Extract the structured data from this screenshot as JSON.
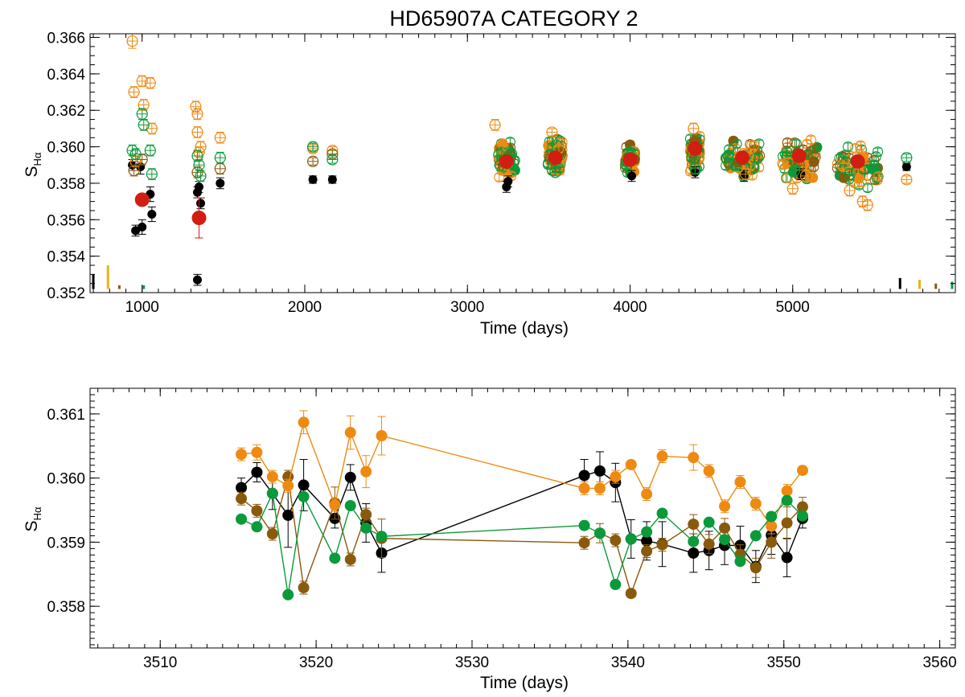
{
  "figure_title": "HD65907A CATEGORY 2",
  "colors": {
    "black": "#000000",
    "orange": "#ee8a12",
    "brown": "#8a5a0c",
    "green": "#0a9a3a",
    "red": "#d21e12",
    "yellow": "#e8b410"
  },
  "chart_data": [
    {
      "type": "scatter",
      "title": "HD65907A CATEGORY 2",
      "xlabel": "Time (days)",
      "ylabel": "S",
      "ylabel_sub": "Hα",
      "xlim": [
        680,
        6000
      ],
      "ylim": [
        0.352,
        0.3662
      ],
      "xticks": [
        1000,
        2000,
        3000,
        4000,
        5000
      ],
      "xtick_labels": [
        "1000",
        "2000",
        "3000",
        "4000",
        "5000"
      ],
      "yticks": [
        0.352,
        0.354,
        0.356,
        0.358,
        0.36,
        0.362,
        0.364,
        0.366
      ],
      "ytick_labels": [
        "0.352",
        "0.354",
        "0.356",
        "0.358",
        "0.360",
        "0.362",
        "0.364",
        "0.366"
      ],
      "series": [
        {
          "name": "black (filled)",
          "color": "black",
          "marker": "filled",
          "x": [
            940,
            960,
            990,
            1000,
            1050,
            1060,
            1340,
            1350,
            1360,
            1480,
            2050,
            2170,
            3240,
            3250,
            4010,
            4400,
            4700,
            5050,
            5700,
            1340
          ],
          "y": [
            0.359,
            0.3554,
            0.3589,
            0.3556,
            0.3574,
            0.3563,
            0.3575,
            0.3578,
            0.3569,
            0.358,
            0.3582,
            0.3582,
            0.3578,
            0.3581,
            0.3584,
            0.3586,
            0.3584,
            0.3585,
            0.3589,
            0.3527
          ],
          "err": [
            0.0003,
            0.0003,
            0.0004,
            0.0004,
            0.0004,
            0.0004,
            0.0003,
            0.0003,
            0.0003,
            0.0003,
            0.0002,
            0.0002,
            0.0003,
            0.0003,
            0.0003,
            0.0003,
            0.0003,
            0.0003,
            0.0002,
            0.0003
          ]
        },
        {
          "name": "orange (open)",
          "color": "orange",
          "marker": "open",
          "x": [
            940,
            950,
            1000,
            1010,
            1050,
            1060,
            1330,
            1340,
            1360,
            1480,
            1340,
            2050,
            2170,
            3170,
            3520,
            4390,
            4710,
            5000,
            5080,
            5350,
            5430,
            5460,
            5700,
            960,
            1350
          ],
          "y": [
            0.3658,
            0.363,
            0.3636,
            0.3623,
            0.3635,
            0.361,
            0.3622,
            0.3618,
            0.36,
            0.3605,
            0.3608,
            0.3599,
            0.3598,
            0.3612,
            0.3608,
            0.361,
            0.3585,
            0.3577,
            0.3584,
            0.3576,
            0.357,
            0.3568,
            0.3582,
            0.3592,
            0.3597
          ],
          "err": [
            0.0004,
            0.0003,
            0.0003,
            0.0003,
            0.0003,
            0.0003,
            0.0003,
            0.0003,
            0.0003,
            0.0003,
            0.0003,
            0.0002,
            0.0002,
            0.0003,
            0.0002,
            0.0003,
            0.0003,
            0.0003,
            0.0003,
            0.0003,
            0.0003,
            0.0003,
            0.0002,
            0.0003,
            0.0003
          ]
        },
        {
          "name": "brown (open)",
          "color": "brown",
          "marker": "open",
          "x": [
            950,
            1000,
            1340,
            1480,
            2050,
            2170,
            3230,
            4400,
            5040
          ],
          "y": [
            0.3587,
            0.3593,
            0.3586,
            0.3588,
            0.3592,
            0.3596,
            0.3592,
            0.3594,
            0.359
          ],
          "err": [
            0.0003,
            0.0003,
            0.0003,
            0.0003,
            0.0002,
            0.0002,
            0.0003,
            0.0003,
            0.0003
          ]
        },
        {
          "name": "green (open)",
          "color": "green",
          "marker": "open",
          "x": [
            940,
            960,
            1000,
            1010,
            1050,
            1060,
            1340,
            1350,
            1360,
            1480,
            2050,
            2170,
            3200,
            3540,
            4000,
            4400,
            4650,
            5010,
            5350,
            5700
          ],
          "y": [
            0.3598,
            0.3596,
            0.3618,
            0.3612,
            0.3598,
            0.3585,
            0.3595,
            0.359,
            0.3584,
            0.3594,
            0.36,
            0.3593,
            0.359,
            0.3586,
            0.3595,
            0.3588,
            0.359,
            0.3587,
            0.3585,
            0.3594
          ],
          "err": [
            0.0003,
            0.0003,
            0.0003,
            0.0003,
            0.0003,
            0.0003,
            0.0003,
            0.0003,
            0.0003,
            0.0003,
            0.0002,
            0.0002,
            0.0003,
            0.0002,
            0.0002,
            0.0003,
            0.0003,
            0.0003,
            0.0003,
            0.0002
          ]
        },
        {
          "name": "red (seasonal mean)",
          "color": "red",
          "marker": "big",
          "x": [
            1000,
            1350,
            3240,
            3540,
            4000,
            4400,
            4690,
            5040,
            5400
          ],
          "y": [
            0.3571,
            0.3561,
            0.3592,
            0.3594,
            0.3593,
            0.3599,
            0.3594,
            0.3595,
            0.3592
          ],
          "err": [
            0.0003,
            0.0011,
            0.0002,
            0.0002,
            0.0002,
            0.0002,
            0.0002,
            0.0002,
            0.0002
          ]
        }
      ],
      "dense_clusters": [
        {
          "x_center": 3240,
          "x_spread": 55,
          "y_min": 0.358,
          "y_max": 0.3606
        },
        {
          "x_center": 3540,
          "x_spread": 45,
          "y_min": 0.3583,
          "y_max": 0.3608
        },
        {
          "x_center": 4000,
          "x_spread": 30,
          "y_min": 0.3584,
          "y_max": 0.3603
        },
        {
          "x_center": 4400,
          "x_spread": 30,
          "y_min": 0.3582,
          "y_max": 0.3611
        },
        {
          "x_center": 4690,
          "x_spread": 110,
          "y_min": 0.3582,
          "y_max": 0.3606
        },
        {
          "x_center": 5040,
          "x_spread": 110,
          "y_min": 0.3579,
          "y_max": 0.3607
        },
        {
          "x_center": 5400,
          "x_spread": 130,
          "y_min": 0.3573,
          "y_max": 0.3604
        }
      ],
      "bars": [
        {
          "x": 700,
          "y0": 0.3522,
          "y1": 0.353,
          "color": "black"
        },
        {
          "x": 790,
          "y0": 0.3522,
          "y1": 0.3535,
          "color": "yellow"
        },
        {
          "x": 860,
          "y0": 0.3522,
          "y1": 0.3524,
          "color": "brown"
        },
        {
          "x": 1010,
          "y0": 0.3522,
          "y1": 0.3524,
          "color": "green"
        },
        {
          "x": 5660,
          "y0": 0.3522,
          "y1": 0.3528,
          "color": "black"
        },
        {
          "x": 5780,
          "y0": 0.3522,
          "y1": 0.3527,
          "color": "yellow"
        },
        {
          "x": 5880,
          "y0": 0.3522,
          "y1": 0.3525,
          "color": "brown"
        },
        {
          "x": 5980,
          "y0": 0.3522,
          "y1": 0.3526,
          "color": "green"
        }
      ]
    },
    {
      "type": "line",
      "title": "",
      "xlabel": "Time (days)",
      "ylabel": "S",
      "ylabel_sub": "Hα",
      "xlim": [
        3505.5,
        3561
      ],
      "ylim": [
        0.35735,
        0.3614
      ],
      "xticks": [
        3510,
        3520,
        3530,
        3540,
        3550,
        3560
      ],
      "xtick_labels": [
        "3510",
        "3520",
        "3530",
        "3540",
        "3550",
        "3560"
      ],
      "yticks": [
        0.358,
        0.359,
        0.36,
        0.361
      ],
      "ytick_labels": [
        "0.358",
        "0.359",
        "0.360",
        "0.361"
      ],
      "x": [
        3515.2,
        3516.2,
        3517.2,
        3518.2,
        3519.2,
        3521.2,
        3522.2,
        3523.2,
        3524.2,
        3537.2,
        3538.2,
        3539.2,
        3540.2,
        3541.2,
        3542.2,
        3544.2,
        3545.2,
        3546.2,
        3547.2,
        3548.2,
        3549.2,
        3550.2,
        3551.2
      ],
      "series": [
        {
          "name": "orange",
          "color": "orange",
          "values": [
            0.36037,
            0.3604,
            0.36002,
            0.35988,
            0.36087,
            0.35958,
            0.36071,
            0.3601,
            0.36066,
            0.35984,
            0.35984,
            0.36002,
            0.36021,
            0.35975,
            0.36034,
            0.36032,
            0.36011,
            0.35956,
            0.35994,
            0.3596,
            0.35925,
            0.3598,
            0.36012
          ],
          "err": [
            0.0001,
            0.00012,
            0.0001,
            0.0001,
            0.00018,
            0.0001,
            0.00026,
            0.00025,
            0.0003,
            0.0001,
            0.0001,
            0.0001,
            6e-05,
            0.0001,
            0.0001,
            0.0002,
            0.0001,
            0.0001,
            0.0001,
            0.0001,
            0.00012,
            0.0001,
            6e-05
          ]
        },
        {
          "name": "black",
          "color": "black",
          "values": [
            0.35985,
            0.36009,
            0.35976,
            0.35942,
            0.35989,
            0.35937,
            0.36001,
            0.3593,
            0.35883,
            0.36004,
            0.36011,
            0.35993,
            0.35905,
            0.35902,
            0.35897,
            0.35883,
            0.35887,
            0.35895,
            0.35895,
            0.35862,
            0.35911,
            0.35876,
            0.35937
          ],
          "err": [
            0.00015,
            0.00015,
            0.00025,
            0.0005,
            0.0004,
            0.00015,
            0.0002,
            0.0003,
            0.0003,
            0.00025,
            0.0003,
            0.0003,
            0.0003,
            0.0003,
            0.00035,
            0.0003,
            0.0003,
            0.0003,
            0.0003,
            0.00025,
            0.0003,
            0.0003,
            0.00015
          ]
        },
        {
          "name": "brown",
          "color": "brown",
          "values": [
            0.35968,
            0.35949,
            0.35913,
            0.36002,
            0.35829,
            0.35961,
            0.35873,
            0.35943,
            0.35906,
            0.35899,
            0.35914,
            0.35903,
            0.3582,
            0.35886,
            0.35896,
            0.35928,
            0.35897,
            0.35922,
            0.35881,
            0.3586,
            0.359,
            0.3593,
            0.35955
          ],
          "err": [
            0.0001,
            0.0001,
            0.0001,
            0.0001,
            0.0001,
            0.00025,
            0.0001,
            0.0001,
            0.0003,
            0.0001,
            0.00015,
            0.0001,
            6e-05,
            0.0001,
            0.0001,
            0.00015,
            0.00015,
            0.00015,
            0.00015,
            0.00015,
            0.00025,
            0.00025,
            0.00015
          ]
        },
        {
          "name": "green",
          "color": "green",
          "values": [
            0.35936,
            0.35924,
            0.35976,
            0.35818,
            0.35971,
            0.35875,
            0.35957,
            0.35922,
            0.35909,
            0.35926,
            0.35914,
            0.35834,
            0.35905,
            0.35916,
            0.35945,
            0.35901,
            0.35931,
            0.35904,
            0.3587,
            0.3591,
            0.3594,
            0.35965,
            0.35941
          ]
        }
      ]
    }
  ]
}
